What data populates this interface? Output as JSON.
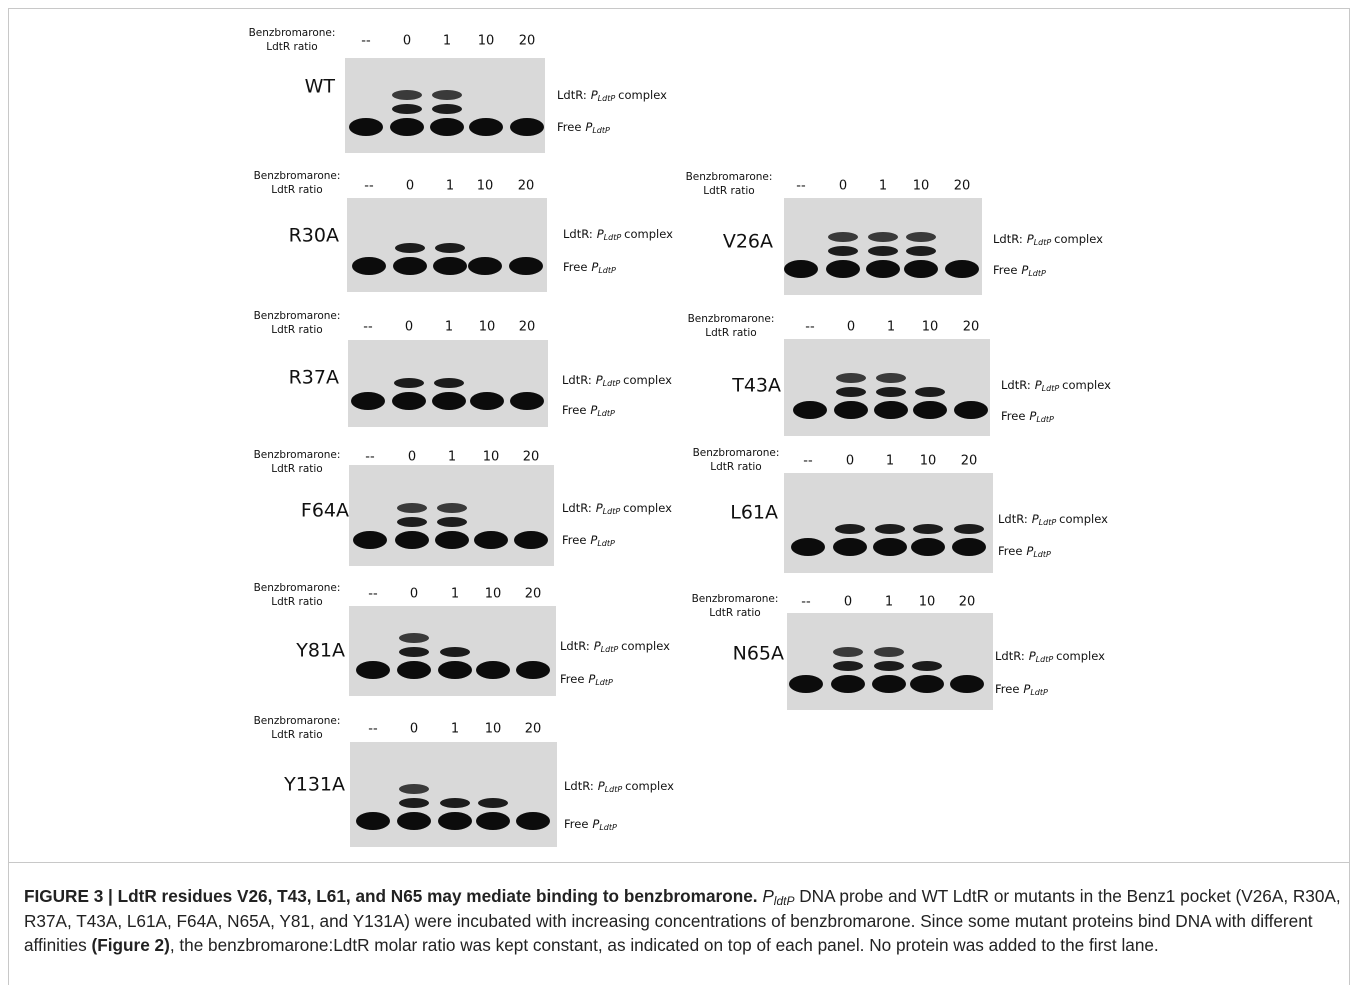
{
  "panels": [
    {
      "name": "WT",
      "ratio": [
        "Benzbromarone:",
        "LdtR ratio"
      ],
      "lanes": [
        "--",
        "0",
        "1",
        "10",
        "20"
      ],
      "complex": [
        "LdtR:",
        "P",
        "LdtP",
        "complex"
      ],
      "free": [
        "Free",
        "P",
        "LdtP"
      ]
    },
    {
      "name": "R30A",
      "ratio": [
        "Benzbromarone:",
        "LdtR ratio"
      ],
      "lanes": [
        "--",
        "0",
        "1",
        "10",
        "20"
      ],
      "complex": [
        "LdtR:",
        "P",
        "LdtP",
        "complex"
      ],
      "free": [
        "Free",
        "P",
        "LdtP"
      ]
    },
    {
      "name": "R37A",
      "ratio": [
        "Benzbromarone:",
        "LdtR ratio"
      ],
      "lanes": [
        "--",
        "0",
        "1",
        "10",
        "20"
      ],
      "complex": [
        "LdtR:",
        "P",
        "LdtP",
        "complex"
      ],
      "free": [
        "Free",
        "P",
        "LdtP"
      ]
    },
    {
      "name": "F64A",
      "ratio": [
        "Benzbromarone:",
        "LdtR ratio"
      ],
      "lanes": [
        "--",
        "0",
        "1",
        "10",
        "20"
      ],
      "complex": [
        "LdtR:",
        "P",
        "LdtP",
        "complex"
      ],
      "free": [
        "Free",
        "P",
        "LdtP"
      ]
    },
    {
      "name": "Y81A",
      "ratio": [
        "Benzbromarone:",
        "LdtR ratio"
      ],
      "lanes": [
        "--",
        "0",
        "1",
        "10",
        "20"
      ],
      "complex": [
        "LdtR:",
        "P",
        "LdtP",
        "complex"
      ],
      "free": [
        "Free",
        "P",
        "LdtP"
      ]
    },
    {
      "name": "Y131A",
      "ratio": [
        "Benzbromarone:",
        "LdtR ratio"
      ],
      "lanes": [
        "--",
        "0",
        "1",
        "10",
        "20"
      ],
      "complex": [
        "LdtR:",
        "P",
        "LdtP",
        "complex"
      ],
      "free": [
        "Free",
        "P",
        "LdtP"
      ]
    },
    {
      "name": "V26A",
      "ratio": [
        "Benzbromarone:",
        "LdtR ratio"
      ],
      "lanes": [
        "--",
        "0",
        "1",
        "10",
        "20"
      ],
      "complex": [
        "LdtR:",
        "P",
        "LdtP",
        "complex"
      ],
      "free": [
        "Free",
        "P",
        "LdtP"
      ]
    },
    {
      "name": "T43A",
      "ratio": [
        "Benzbromarone:",
        "LdtR ratio"
      ],
      "lanes": [
        "--",
        "0",
        "1",
        "10",
        "20"
      ],
      "complex": [
        "LdtR:",
        "P",
        "LdtP",
        "complex"
      ],
      "free": [
        "Free",
        "P",
        "LdtP"
      ]
    },
    {
      "name": "L61A",
      "ratio": [
        "Benzbromarone:",
        "LdtR ratio"
      ],
      "lanes": [
        "--",
        "0",
        "1",
        "10",
        "20"
      ],
      "complex": [
        "LdtR:",
        "P",
        "LdtP",
        "complex"
      ],
      "free": [
        "Free",
        "P",
        "LdtP"
      ]
    },
    {
      "name": "N65A",
      "ratio": [
        "Benzbromarone:",
        "LdtR ratio"
      ],
      "lanes": [
        "--",
        "0",
        "1",
        "10",
        "20"
      ],
      "complex": [
        "LdtR:",
        "P",
        "LdtP",
        "complex"
      ],
      "free": [
        "Free",
        "P",
        "LdtP"
      ]
    }
  ],
  "caption": {
    "label": "FIGURE 3 | LdtR residues V26, T43, L61, and N65 may mediate binding to benzbromarone.",
    "p": "P",
    "sub": "ldtP",
    "text1": "DNA probe and WT LdtR or mutants in the Benz1 pocket (V26A, R30A, R37A, T43A, L61A, F64A, N65A, Y81, and Y131A) were incubated with increasing concentrations of benzbromarone. Since some mutant proteins bind DNA with different affinities",
    "ref": "(Figure 2)",
    "text2": ", the benzbromarone:LdtR molar ratio was kept constant, as indicated on top of each panel. No protein was added to the first lane."
  }
}
